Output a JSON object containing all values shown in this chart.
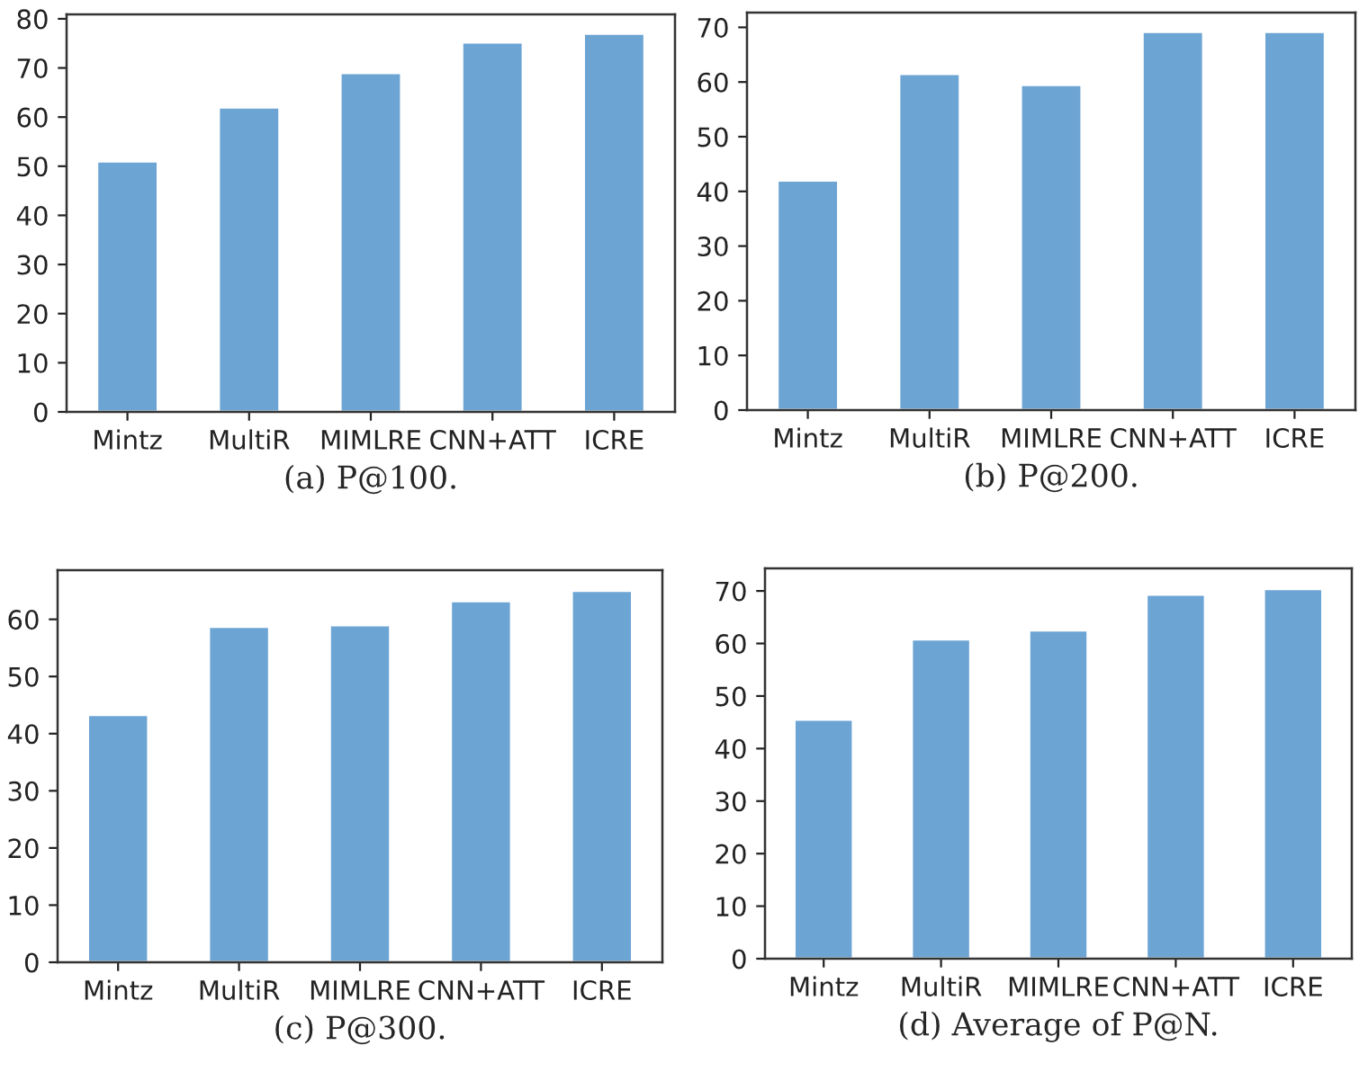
{
  "chart_data": [
    {
      "type": "bar",
      "xlabel": "(a) P@100.",
      "categories": [
        "Mintz",
        "MultiR",
        "MIMLRE",
        "CNN+ATT",
        "ICRE"
      ],
      "values": [
        51,
        62,
        69,
        75.2,
        77
      ],
      "color": "#6ca4d4",
      "ylim": [
        0,
        80.9
      ],
      "yticks": [
        0,
        10,
        20,
        30,
        40,
        50,
        60,
        70,
        80
      ],
      "grid": false,
      "legend": false
    },
    {
      "type": "bar",
      "xlabel": "(b) P@200.",
      "categories": [
        "Mintz",
        "MultiR",
        "MIMLRE",
        "CNN+ATT",
        "ICRE"
      ],
      "values": [
        42,
        61.5,
        59.5,
        69.2,
        69.2
      ],
      "color": "#6ca4d4",
      "ylim": [
        0,
        72.7
      ],
      "yticks": [
        0,
        10,
        20,
        30,
        40,
        50,
        60,
        70
      ],
      "grid": false,
      "legend": false
    },
    {
      "type": "bar",
      "xlabel": "(c) P@300.",
      "categories": [
        "Mintz",
        "MultiR",
        "MIMLRE",
        "CNN+ATT",
        "ICRE"
      ],
      "values": [
        43.3,
        58.7,
        59,
        63.2,
        65
      ],
      "color": "#6ca4d4",
      "ylim": [
        0,
        68.6
      ],
      "yticks": [
        0,
        10,
        20,
        30,
        40,
        50,
        60
      ],
      "grid": false,
      "legend": false
    },
    {
      "type": "bar",
      "xlabel": "(d) Average of P@N.",
      "categories": [
        "Mintz",
        "MultiR",
        "MIMLRE",
        "CNN+ATT",
        "ICRE"
      ],
      "values": [
        45.5,
        60.8,
        62.5,
        69.3,
        70.4
      ],
      "color": "#6ca4d4",
      "ylim": [
        0,
        74.3
      ],
      "yticks": [
        0,
        10,
        20,
        30,
        40,
        50,
        60,
        70
      ],
      "grid": false,
      "legend": false
    }
  ]
}
